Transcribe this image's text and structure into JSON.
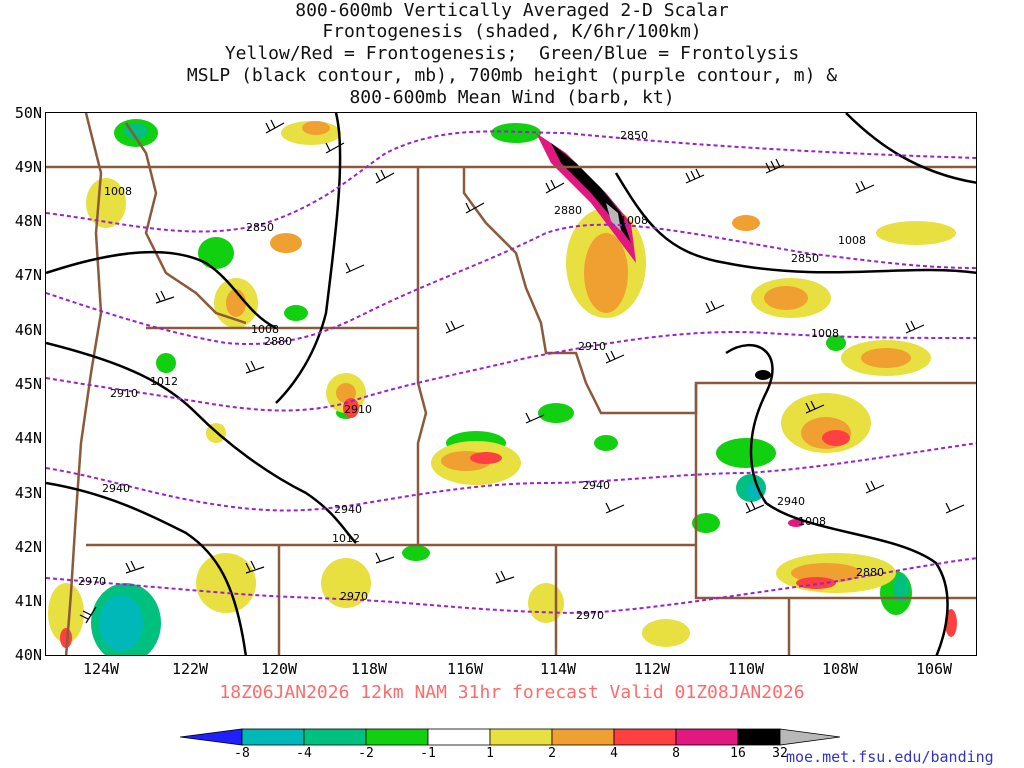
{
  "title_lines": [
    "800-600mb Vertically Averaged 2-D Scalar",
    "Frontogenesis (shaded, K/6hr/100km)",
    "Yellow/Red = Frontogenesis;  Green/Blue = Frontolysis",
    "MSLP (black contour, mb), 700mb height (purple contour, m) &",
    "800-600mb Mean Wind (barb, kt)"
  ],
  "lat_labels": [
    "50N",
    "49N",
    "48N",
    "47N",
    "46N",
    "45N",
    "44N",
    "43N",
    "42N",
    "41N",
    "40N"
  ],
  "lon_labels": [
    "124W",
    "122W",
    "120W",
    "118W",
    "116W",
    "114W",
    "112W",
    "110W",
    "108W",
    "106W"
  ],
  "valid_text": "18Z06JAN2026  12km NAM 31hr forecast Valid 01Z08JAN2026",
  "colorbar": {
    "labels": [
      "-8",
      "-4",
      "-2",
      "-1",
      "1",
      "2",
      "4",
      "8",
      "16",
      "32"
    ],
    "colors": [
      "#2020ff",
      "#00b8b8",
      "#00c080",
      "#10d010",
      "#ffffff",
      "#e8e040",
      "#f0a030",
      "#ff4040",
      "#e01880",
      "#000000",
      "#b8b8b8"
    ]
  },
  "credit": "moe.met.fsu.edu/banding",
  "contour_labels": {
    "height": [
      "2850",
      "2850",
      "2880",
      "2880",
      "2910",
      "2910",
      "2940",
      "2940",
      "2940",
      "2970",
      "2970",
      "2970",
      "2850",
      "2910",
      "2940",
      "2880"
    ],
    "mslp": [
      "1008",
      "1008",
      "1012",
      "1012",
      "1008",
      "1008",
      "1008",
      "1008"
    ]
  },
  "colors": {
    "mslp": "#000000",
    "height": "#9922cc",
    "borders": "#8b5a3c",
    "valid_text": "#ff6a6a",
    "credit": "#3333cc"
  }
}
